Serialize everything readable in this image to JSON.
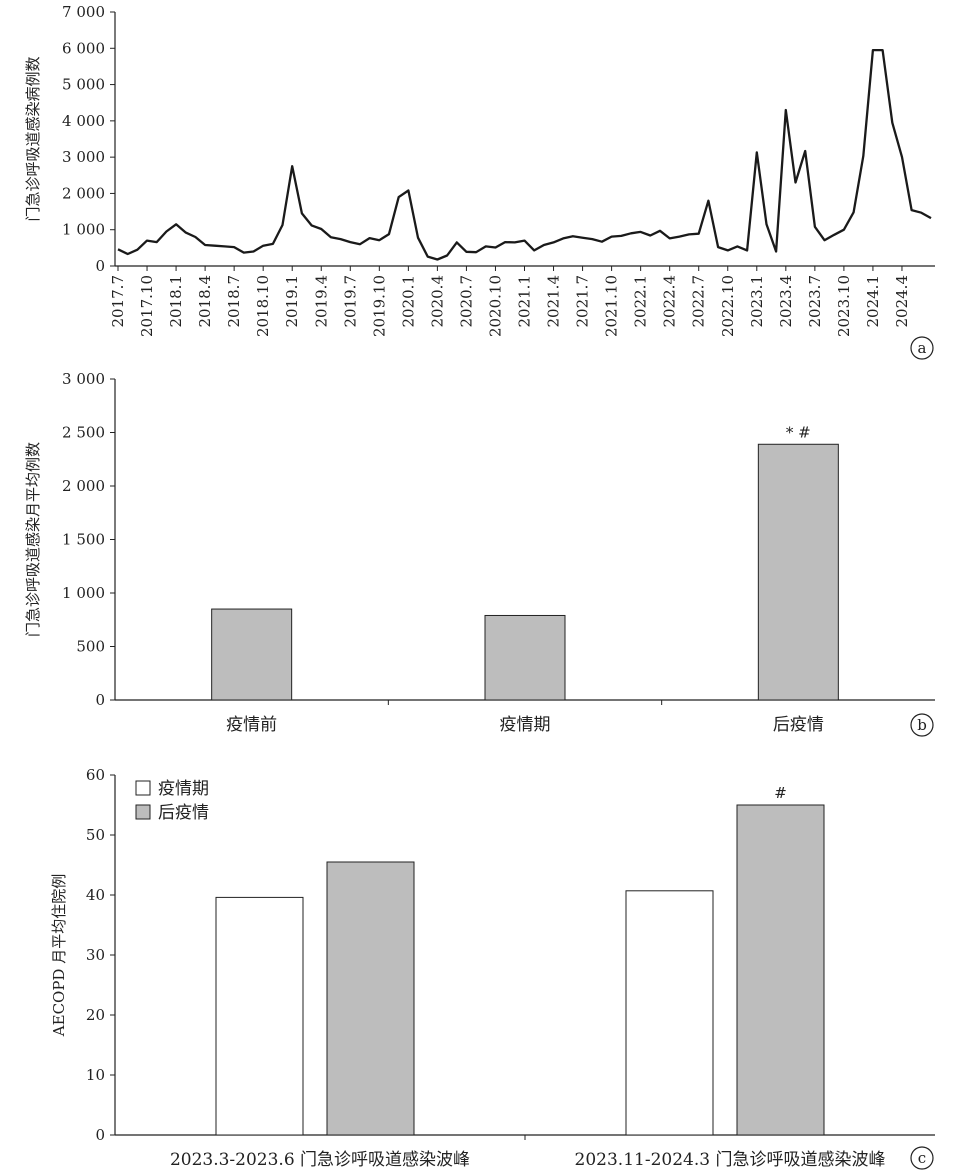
{
  "chart_data": [
    {
      "panel": "a",
      "type": "line",
      "ylabel": "门急诊呼吸道感染病例数",
      "ylim": [
        0,
        7000
      ],
      "yticks": [
        "0",
        "1 000",
        "2 000",
        "3 000",
        "4 000",
        "5 000",
        "6 000",
        "7 000"
      ],
      "xtick_labels": [
        "2017.7",
        "2017.10",
        "2018.1",
        "2018.4",
        "2018.7",
        "2018.10",
        "2019.1",
        "2019.4",
        "2019.7",
        "2019.10",
        "2020.1",
        "2020.4",
        "2020.7",
        "2020.10",
        "2021.1",
        "2021.4",
        "2021.7",
        "2021.10",
        "2022.1",
        "2022.4",
        "2022.7",
        "2022.10",
        "2023.1",
        "2023.4",
        "2023.7",
        "2023.10",
        "2024.1",
        "2024.4"
      ],
      "start_month": "2017.7",
      "values": [
        460,
        330,
        450,
        700,
        660,
        950,
        1150,
        920,
        800,
        580,
        560,
        540,
        520,
        370,
        400,
        560,
        610,
        1130,
        2750,
        1450,
        1120,
        1020,
        790,
        740,
        660,
        600,
        770,
        710,
        880,
        1900,
        2080,
        780,
        260,
        180,
        290,
        650,
        390,
        380,
        540,
        510,
        660,
        650,
        700,
        430,
        580,
        650,
        760,
        820,
        780,
        740,
        670,
        810,
        830,
        900,
        940,
        840,
        970,
        760,
        810,
        870,
        890,
        1800,
        520,
        430,
        540,
        430,
        3130,
        1150,
        400,
        4300,
        2300,
        3170,
        1080,
        710,
        860,
        1000,
        1480,
        3030,
        5950,
        5950,
        3950,
        3000,
        1540,
        1470,
        1320
      ]
    },
    {
      "panel": "b",
      "type": "bar",
      "ylabel": "门急诊呼吸道感染月平均例数",
      "ylim": [
        0,
        3000
      ],
      "yticks": [
        "0",
        "500",
        "1 000",
        "1 500",
        "2 000",
        "2 500",
        "3 000"
      ],
      "categories": [
        "疫情前",
        "疫情期",
        "后疫情"
      ],
      "values": [
        850,
        790,
        2390
      ],
      "annotations": [
        "",
        "",
        "* #"
      ]
    },
    {
      "panel": "c",
      "type": "bar",
      "ylabel": "AECOPD 月平均住院例",
      "ylim": [
        0,
        60
      ],
      "yticks": [
        "0",
        "10",
        "20",
        "30",
        "40",
        "50",
        "60"
      ],
      "categories": [
        "2023.3-2023.6 门急诊呼吸道感染波峰",
        "2023.11-2024.3 门急诊呼吸道感染波峰"
      ],
      "series": [
        {
          "name": "疫情期",
          "values": [
            39.6,
            40.7
          ],
          "color": "#ffffff"
        },
        {
          "name": "后疫情",
          "values": [
            45.5,
            55.0
          ],
          "color": "#bdbdbd"
        }
      ],
      "annotations": [
        "",
        "#"
      ],
      "legend_position": "top-left"
    }
  ],
  "panel_labels": [
    "a",
    "b",
    "c"
  ],
  "colors": {
    "bar_fill": "#bdbdbd",
    "line": "#1a1a1a",
    "axis": "#222222"
  }
}
